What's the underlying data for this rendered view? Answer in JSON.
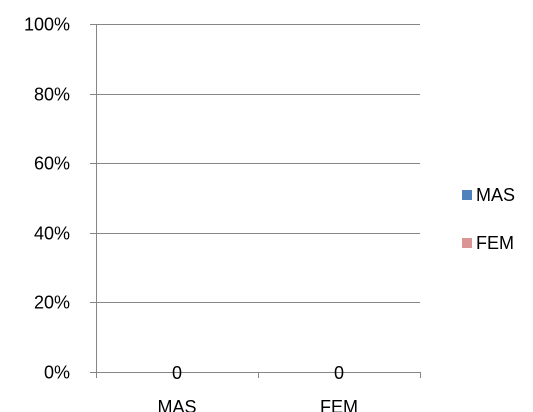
{
  "chart_data": {
    "type": "bar",
    "categories": [
      "MAS",
      "FEM"
    ],
    "series": [
      {
        "name": "MAS",
        "values": [
          0,
          0
        ],
        "color": "#4F81BD"
      },
      {
        "name": "FEM",
        "values": [
          0,
          0
        ],
        "color": "#D99694"
      }
    ],
    "data_labels": [
      "0",
      "0"
    ],
    "y_ticks": [
      "0%",
      "20%",
      "40%",
      "60%",
      "80%",
      "100%"
    ],
    "ylim": [
      0,
      100
    ],
    "grid": true,
    "legend_position": "right"
  }
}
